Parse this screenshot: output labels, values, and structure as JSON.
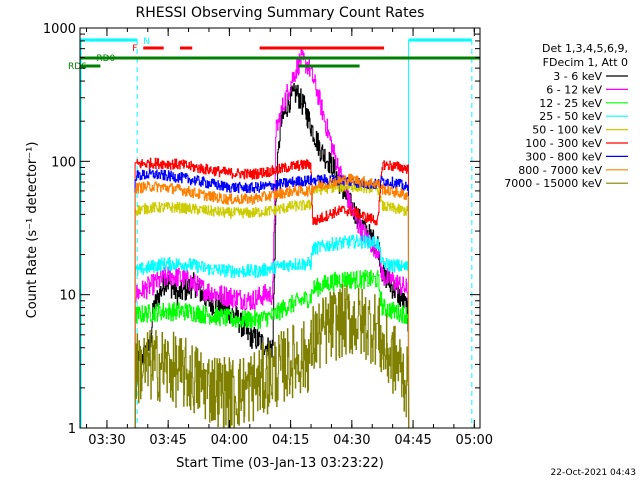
{
  "chart_data": {
    "type": "line",
    "title": "RHESSI Observing Summary Count Rates",
    "xlabel": "Start Time (03-Jan-13 03:23:22)",
    "ylabel": "Count Rate (s⁻¹ detector⁻¹)",
    "yscale": "log",
    "xlim_minutes": [
      0,
      98
    ],
    "ylim": [
      1,
      1000
    ],
    "x_ticks": [
      {
        "m": 6.6,
        "label": "03:30"
      },
      {
        "m": 21.6,
        "label": "03:45"
      },
      {
        "m": 36.6,
        "label": "04:00"
      },
      {
        "m": 51.6,
        "label": "04:15"
      },
      {
        "m": 66.6,
        "label": "04:30"
      },
      {
        "m": 81.6,
        "label": "04:45"
      },
      {
        "m": 96.6,
        "label": "05:00"
      }
    ],
    "y_ticks": [
      {
        "v": 1,
        "label": "1"
      },
      {
        "v": 10,
        "label": "10"
      },
      {
        "v": 100,
        "label": "100"
      },
      {
        "v": 1000,
        "label": "1000"
      }
    ],
    "legend_header": [
      "Det 1,3,4,5,6,9,",
      "FDecim 1, Att 0"
    ],
    "legend_position": "right",
    "footer_date": "22-Oct-2021 04:43",
    "data_gaps_minutes": [
      [
        0,
        13.5
      ],
      [
        80.5,
        98
      ]
    ],
    "series": [
      {
        "name": "3 - 6 keV",
        "color": "#000000",
        "noise": 0.09,
        "points": [
          [
            13.5,
            3
          ],
          [
            17,
            4
          ],
          [
            18,
            8
          ],
          [
            21,
            13
          ],
          [
            24,
            10
          ],
          [
            28,
            12
          ],
          [
            31,
            9
          ],
          [
            35,
            8
          ],
          [
            38,
            7
          ],
          [
            41,
            5
          ],
          [
            44,
            4.5
          ],
          [
            46,
            4
          ],
          [
            47.2,
            4
          ],
          [
            48,
            60
          ],
          [
            49,
            180
          ],
          [
            51,
            280
          ],
          [
            53,
            330
          ],
          [
            55,
            250
          ],
          [
            57,
            170
          ],
          [
            59,
            120
          ],
          [
            62,
            90
          ],
          [
            65,
            55
          ],
          [
            68,
            38
          ],
          [
            70,
            30
          ],
          [
            72,
            25
          ],
          [
            73,
            24
          ],
          [
            74,
            15
          ],
          [
            76,
            12
          ],
          [
            78,
            10
          ],
          [
            80,
            8
          ],
          [
            80.5,
            5
          ]
        ]
      },
      {
        "name": "6 - 12 keV",
        "color": "#ff00ff",
        "noise": 0.08,
        "points": [
          [
            13.5,
            10
          ],
          [
            18,
            12
          ],
          [
            22,
            14
          ],
          [
            26,
            13
          ],
          [
            30,
            11
          ],
          [
            34,
            10
          ],
          [
            38,
            9.5
          ],
          [
            42,
            9
          ],
          [
            45,
            10
          ],
          [
            47.2,
            10
          ],
          [
            48,
            170
          ],
          [
            50,
            280
          ],
          [
            52,
            420
          ],
          [
            54,
            580
          ],
          [
            56,
            520
          ],
          [
            58,
            340
          ],
          [
            60,
            200
          ],
          [
            62,
            120
          ],
          [
            64,
            75
          ],
          [
            66,
            48
          ],
          [
            68,
            34
          ],
          [
            70,
            27
          ],
          [
            72,
            23
          ],
          [
            73,
            22
          ],
          [
            74,
            14
          ],
          [
            76,
            13
          ],
          [
            78,
            12
          ],
          [
            80,
            11
          ],
          [
            80.5,
            10
          ]
        ]
      },
      {
        "name": "12 - 25 keV",
        "color": "#00ff00",
        "noise": 0.07,
        "points": [
          [
            13.5,
            7
          ],
          [
            20,
            7.5
          ],
          [
            26,
            7.5
          ],
          [
            32,
            7
          ],
          [
            38,
            6.5
          ],
          [
            44,
            6.5
          ],
          [
            47.5,
            7
          ],
          [
            50,
            8
          ],
          [
            54,
            9
          ],
          [
            56.5,
            9.5
          ],
          [
            57,
            11
          ],
          [
            60,
            12
          ],
          [
            64,
            13
          ],
          [
            68,
            13
          ],
          [
            72,
            13
          ],
          [
            73,
            13
          ],
          [
            74,
            8
          ],
          [
            80.5,
            7
          ]
        ]
      },
      {
        "name": "25 - 50 keV",
        "color": "#00ffff",
        "noise": 0.05,
        "points": [
          [
            13.5,
            15
          ],
          [
            20,
            17
          ],
          [
            26,
            17
          ],
          [
            32,
            15.5
          ],
          [
            38,
            15
          ],
          [
            44,
            15
          ],
          [
            47.5,
            16
          ],
          [
            52,
            17
          ],
          [
            56.5,
            17
          ],
          [
            57,
            22
          ],
          [
            62,
            24
          ],
          [
            67,
            25
          ],
          [
            72,
            25
          ],
          [
            73,
            24
          ],
          [
            74,
            17
          ],
          [
            80.5,
            16
          ]
        ]
      },
      {
        "name": "50 - 100 keV",
        "color": "#cccc00",
        "noise": 0.04,
        "points": [
          [
            13.5,
            43
          ],
          [
            18,
            45
          ],
          [
            24,
            45
          ],
          [
            30,
            43
          ],
          [
            36,
            41
          ],
          [
            42,
            41
          ],
          [
            47.5,
            43
          ],
          [
            52,
            46
          ],
          [
            56.5,
            47
          ],
          [
            57,
            60
          ],
          [
            62,
            64
          ],
          [
            67,
            65
          ],
          [
            72,
            63
          ],
          [
            73,
            62
          ],
          [
            74,
            46
          ],
          [
            80.5,
            42
          ]
        ]
      },
      {
        "name": "100 - 300 keV",
        "color": "#ff0000",
        "noise": 0.04,
        "points": [
          [
            13.5,
            95
          ],
          [
            18,
            97
          ],
          [
            24,
            95
          ],
          [
            30,
            88
          ],
          [
            36,
            82
          ],
          [
            42,
            80
          ],
          [
            47.5,
            85
          ],
          [
            52,
            92
          ],
          [
            56.5,
            95
          ],
          [
            57,
            35
          ],
          [
            61,
            40
          ],
          [
            64,
            43
          ],
          [
            67,
            42
          ],
          [
            70,
            38
          ],
          [
            73,
            36
          ],
          [
            74,
            95
          ],
          [
            80.5,
            88
          ]
        ]
      },
      {
        "name": "300 - 800 keV",
        "color": "#0000ff",
        "noise": 0.04,
        "points": [
          [
            13.5,
            78
          ],
          [
            18,
            80
          ],
          [
            24,
            76
          ],
          [
            30,
            70
          ],
          [
            36,
            64
          ],
          [
            42,
            63
          ],
          [
            47.5,
            66
          ],
          [
            52,
            70
          ],
          [
            56.5,
            72
          ],
          [
            57,
            72
          ],
          [
            61,
            73
          ],
          [
            65,
            72
          ],
          [
            70,
            68
          ],
          [
            73,
            67
          ],
          [
            74,
            72
          ],
          [
            78,
            68
          ],
          [
            80.5,
            62
          ]
        ]
      },
      {
        "name": "800 - 7000 keV",
        "color": "#ff8000",
        "noise": 0.04,
        "points": [
          [
            13.5,
            63
          ],
          [
            18,
            65
          ],
          [
            24,
            62
          ],
          [
            30,
            56
          ],
          [
            36,
            52
          ],
          [
            42,
            52
          ],
          [
            47.5,
            56
          ],
          [
            52,
            60
          ],
          [
            56.5,
            60
          ],
          [
            57,
            64
          ],
          [
            62,
            70
          ],
          [
            66,
            74
          ],
          [
            70,
            70
          ],
          [
            73,
            68
          ],
          [
            74,
            62
          ],
          [
            78,
            58
          ],
          [
            80.5,
            55
          ]
        ]
      },
      {
        "name": "7000 - 15000 keV",
        "color": "#808000",
        "noise": 0.28,
        "points": [
          [
            13.5,
            2.8
          ],
          [
            20,
            3
          ],
          [
            26,
            2.5
          ],
          [
            32,
            2.0
          ],
          [
            38,
            1.8
          ],
          [
            44,
            2.2
          ],
          [
            47.5,
            2.6
          ],
          [
            52,
            3.2
          ],
          [
            56.5,
            3.5
          ],
          [
            57,
            4.5
          ],
          [
            62,
            6
          ],
          [
            66,
            6.5
          ],
          [
            70,
            6
          ],
          [
            73,
            5.5
          ],
          [
            74,
            4
          ],
          [
            78,
            3
          ],
          [
            80.5,
            2
          ]
        ]
      }
    ],
    "markers": {
      "cyan_bars": [
        [
          0,
          14
        ],
        [
          80.5,
          96
        ]
      ],
      "cyan_dashed_verticals": [
        14,
        96
      ],
      "cyan_solid_verticals": [
        80.5
      ],
      "N_label": {
        "text": "N",
        "m": 15.5
      },
      "F_label": {
        "text": "F",
        "m": 12.8
      },
      "RD0_label": {
        "text": "RD0",
        "m": 4
      },
      "RD6_label": {
        "text": "RD6",
        "m": -4
      },
      "flare_segments": [
        [
          15.5,
          20.5
        ],
        [
          24.5,
          27.5
        ],
        [
          44,
          74.5
        ]
      ],
      "rd0_segments": [
        [
          0,
          98
        ]
      ],
      "rd6_segments": [
        [
          0,
          5
        ],
        [
          53.5,
          68.5
        ]
      ]
    }
  }
}
